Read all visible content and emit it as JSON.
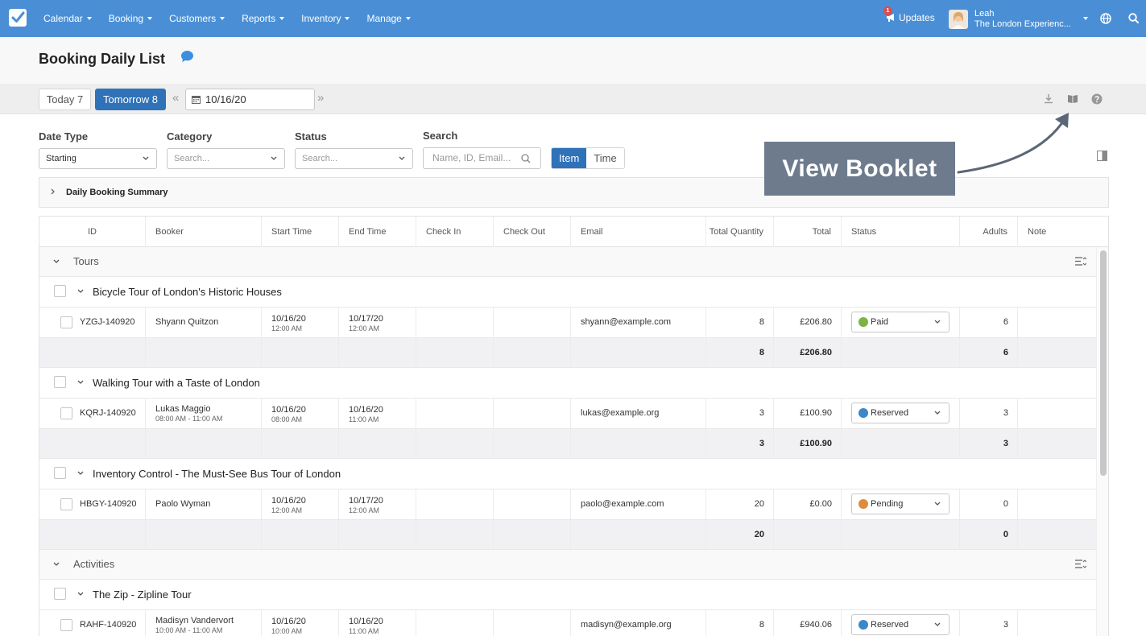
{
  "nav": {
    "menu": [
      {
        "label": "Calendar"
      },
      {
        "label": "Booking"
      },
      {
        "label": "Customers"
      },
      {
        "label": "Reports"
      },
      {
        "label": "Inventory"
      },
      {
        "label": "Manage"
      }
    ],
    "updates_label": "Updates",
    "updates_badge": "1",
    "user_name": "Leah",
    "user_company": "The London Experienc..."
  },
  "page": {
    "title": "Booking Daily List"
  },
  "datebar": {
    "today_label": "Today 7",
    "tomorrow_label": "Tomorrow 8",
    "prev_label": "«",
    "next_label": "»",
    "date_value": "10/16/20"
  },
  "filters": {
    "date_type_label": "Date Type",
    "date_type_value": "Starting",
    "category_label": "Category",
    "category_placeholder": "Search...",
    "status_label": "Status",
    "status_placeholder": "Search...",
    "search_label": "Search",
    "search_placeholder": "Name, ID, Email...",
    "view_item": "Item",
    "view_time": "Time"
  },
  "summary": {
    "label": "Daily Booking Summary"
  },
  "table": {
    "columns": [
      "ID",
      "Booker",
      "Start Time",
      "End Time",
      "Check In",
      "Check Out",
      "Email",
      "Total Quantity",
      "Total",
      "Status",
      "Adults",
      "Note"
    ],
    "groups": [
      {
        "name": "Tours",
        "items": [
          {
            "name": "Bicycle Tour of London's Historic Houses",
            "rows": [
              {
                "id": "YZGJ-140920",
                "booker": "Shyann Quitzon",
                "booker_sub": "",
                "start_date": "10/16/20",
                "start_time": "12:00 AM",
                "end_date": "10/17/20",
                "end_time": "12:00 AM",
                "email": "shyann@example.com",
                "qty": "8",
                "total": "£206.80",
                "status": "Paid",
                "adults": "6"
              }
            ],
            "totals": {
              "qty": "8",
              "total": "£206.80",
              "adults": "6"
            }
          },
          {
            "name": "Walking Tour with a Taste of London",
            "rows": [
              {
                "id": "KQRJ-140920",
                "booker": "Lukas Maggio",
                "booker_sub": "08:00 AM - 11:00 AM",
                "start_date": "10/16/20",
                "start_time": "08:00 AM",
                "end_date": "10/16/20",
                "end_time": "11:00 AM",
                "email": "lukas@example.org",
                "qty": "3",
                "total": "£100.90",
                "status": "Reserved",
                "adults": "3"
              }
            ],
            "totals": {
              "qty": "3",
              "total": "£100.90",
              "adults": "3"
            }
          },
          {
            "name": "Inventory Control - The Must-See Bus Tour of London",
            "rows": [
              {
                "id": "HBGY-140920",
                "booker": "Paolo Wyman",
                "booker_sub": "",
                "start_date": "10/16/20",
                "start_time": "12:00 AM",
                "end_date": "10/17/20",
                "end_time": "12:00 AM",
                "email": "paolo@example.com",
                "qty": "20",
                "total": "£0.00",
                "status": "Pending",
                "adults": "0"
              }
            ],
            "totals": {
              "qty": "20",
              "total": "",
              "adults": "0"
            }
          }
        ]
      },
      {
        "name": "Activities",
        "items": [
          {
            "name": "The Zip - Zipline Tour",
            "rows": [
              {
                "id": "RAHF-140920",
                "booker": "Madisyn Vandervort",
                "booker_sub": "10:00 AM - 11:00 AM",
                "start_date": "10/16/20",
                "start_time": "10:00 AM",
                "end_date": "10/16/20",
                "end_time": "11:00 AM",
                "email": "madisyn@example.org",
                "qty": "8",
                "total": "£940.06",
                "status": "Reserved",
                "adults": "3"
              }
            ]
          }
        ]
      }
    ]
  },
  "status_colors": {
    "Paid": "#7cb342",
    "Reserved": "#3b87c8",
    "Pending": "#e08a3c"
  },
  "callout": {
    "text": "View Booklet"
  },
  "icons": [
    "check-logo-icon",
    "megaphone-icon",
    "globe-icon",
    "search-icon",
    "chat-bubble-icon",
    "calendar-icon",
    "download-icon",
    "booklet-icon",
    "help-icon",
    "columns-icon",
    "chevron-down-icon",
    "chevron-right-icon",
    "list-settings-icon"
  ]
}
